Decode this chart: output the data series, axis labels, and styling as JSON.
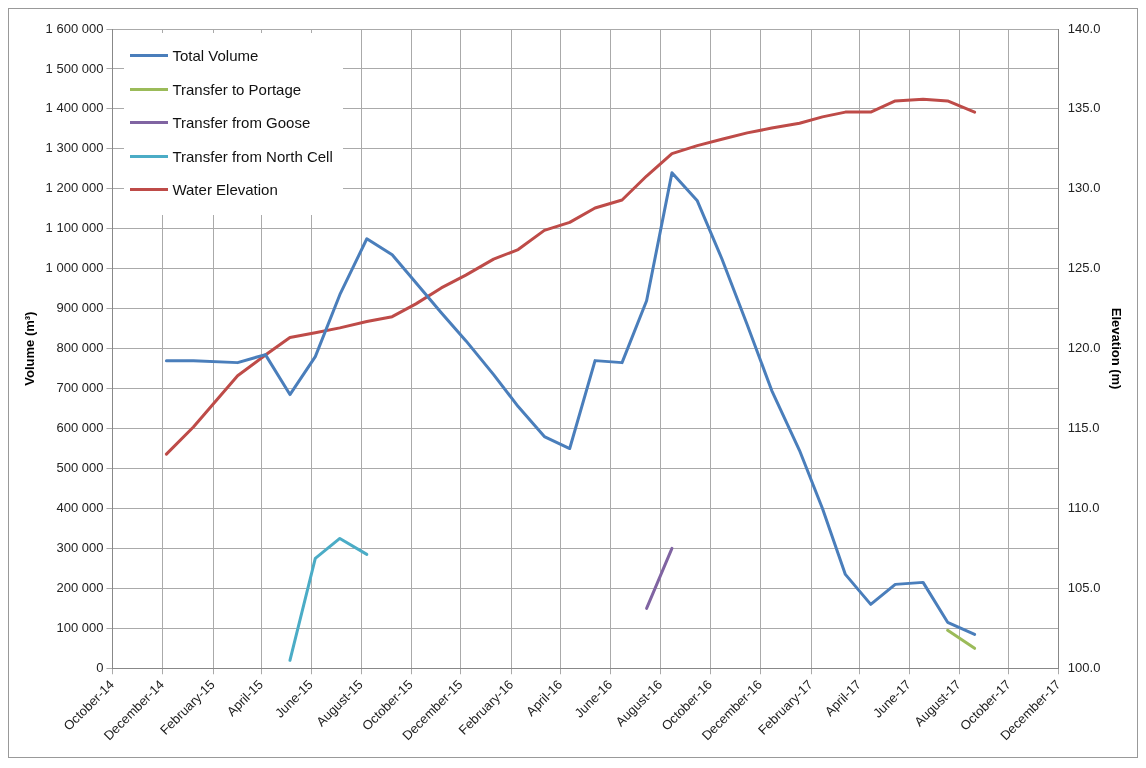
{
  "chart_data": {
    "type": "line",
    "xlabel": null,
    "ylabel": "Volume (m³)",
    "y2label": "Elevation (m)",
    "x": [
      "2014-12-06",
      "2015-01-08",
      "2015-03-03",
      "2015-04-06",
      "2015-05-06",
      "2015-06-06",
      "2015-07-06",
      "2015-08-08",
      "2015-09-08",
      "2015-10-07",
      "2015-11-07",
      "2015-12-07",
      "2016-01-10",
      "2016-02-09",
      "2016-03-12",
      "2016-04-12",
      "2016-05-13",
      "2016-06-15",
      "2016-07-15",
      "2016-08-15",
      "2016-09-15",
      "2016-10-15",
      "2016-11-15",
      "2016-12-15",
      "2017-01-18",
      "2017-02-15",
      "2017-03-15",
      "2017-04-15",
      "2017-05-15",
      "2017-06-18",
      "2017-07-18",
      "2017-08-20"
    ],
    "series": [
      {
        "name": "Total Volume",
        "color": "#4a7ebb",
        "values": [
          770000,
          770000,
          765000,
          785000,
          685000,
          780000,
          935000,
          1075000,
          1035000,
          965000,
          890000,
          820000,
          735000,
          655000,
          580000,
          550000,
          770000,
          765000,
          920000,
          1240000,
          1170000,
          1025000,
          860000,
          695000,
          545000,
          400000,
          235000,
          160000,
          210000,
          215000,
          115000,
          85000
        ]
      },
      {
        "name": "Transfer to Portage",
        "color": "#9bbb59",
        "x": [
          "2017-07-18",
          "2017-08-20"
        ],
        "values": [
          95000,
          50000
        ]
      },
      {
        "name": "Transfer from Goose",
        "color": "#8064a2",
        "x": [
          "2016-07-15",
          "2016-08-15"
        ],
        "values": [
          150000,
          300000
        ]
      },
      {
        "name": "Transfer from North Cell",
        "color": "#4bacc6",
        "x": [
          "2015-05-06",
          "2015-06-06",
          "2015-07-06",
          "2015-08-08"
        ],
        "values": [
          20000,
          275000,
          325000,
          285000
        ]
      },
      {
        "name": "Water Elevation",
        "color": "#be4b48",
        "axis": "y2",
        "values": [
          113.4,
          115.1,
          118.3,
          119.6,
          120.7,
          121.0,
          121.3,
          121.7,
          122.0,
          122.8,
          123.8,
          124.6,
          125.6,
          126.2,
          127.4,
          127.9,
          128.8,
          129.3,
          130.8,
          132.2,
          132.7,
          133.1,
          133.5,
          133.8,
          134.1,
          134.5,
          134.8,
          134.8,
          135.5,
          135.6,
          135.5,
          134.8
        ]
      }
    ],
    "xlim": [
      "2014-10-01",
      "2017-12-01"
    ],
    "xticks": [
      {
        "value": "2014-10-01",
        "label": "October-14"
      },
      {
        "value": "2014-12-01",
        "label": "December-14"
      },
      {
        "value": "2015-02-01",
        "label": "February-15"
      },
      {
        "value": "2015-04-01",
        "label": "April-15"
      },
      {
        "value": "2015-06-01",
        "label": "June-15"
      },
      {
        "value": "2015-08-01",
        "label": "August-15"
      },
      {
        "value": "2015-10-01",
        "label": "October-15"
      },
      {
        "value": "2015-12-01",
        "label": "December-15"
      },
      {
        "value": "2016-02-01",
        "label": "February-16"
      },
      {
        "value": "2016-04-01",
        "label": "April-16"
      },
      {
        "value": "2016-06-01",
        "label": "June-16"
      },
      {
        "value": "2016-08-01",
        "label": "August-16"
      },
      {
        "value": "2016-10-01",
        "label": "October-16"
      },
      {
        "value": "2016-12-01",
        "label": "December-16"
      },
      {
        "value": "2017-02-01",
        "label": "February-17"
      },
      {
        "value": "2017-04-01",
        "label": "April-17"
      },
      {
        "value": "2017-06-01",
        "label": "June-17"
      },
      {
        "value": "2017-08-01",
        "label": "August-17"
      },
      {
        "value": "2017-10-01",
        "label": "October-17"
      },
      {
        "value": "2017-12-01",
        "label": "December-17"
      }
    ],
    "ylim": [
      0,
      1600000
    ],
    "yticks": [
      0,
      {
        "value": 100000,
        "label": "100 000"
      },
      {
        "value": 200000,
        "label": "200 000"
      },
      {
        "value": 300000,
        "label": "300 000"
      },
      {
        "value": 400000,
        "label": "400 000"
      },
      {
        "value": 500000,
        "label": "500 000"
      },
      {
        "value": 600000,
        "label": "600 000"
      },
      {
        "value": 700000,
        "label": "700 000"
      },
      {
        "value": 800000,
        "label": "800 000"
      },
      {
        "value": 900000,
        "label": "900 000"
      },
      {
        "value": 1000000,
        "label": "1 000 000"
      },
      {
        "value": 1100000,
        "label": "1 100 000"
      },
      {
        "value": 1200000,
        "label": "1 200 000"
      },
      {
        "value": 1300000,
        "label": "1 300 000"
      },
      {
        "value": 1400000,
        "label": "1 400 000"
      },
      {
        "value": 1500000,
        "label": "1 500 000"
      },
      {
        "value": 1600000,
        "label": "1 600 000"
      }
    ],
    "y2lim": [
      100,
      140
    ],
    "y2ticks": [
      {
        "value": 100,
        "label": "100.0"
      },
      {
        "value": 105,
        "label": "105.0"
      },
      {
        "value": 110,
        "label": "110.0"
      },
      {
        "value": 115,
        "label": "115.0"
      },
      {
        "value": 120,
        "label": "120.0"
      },
      {
        "value": 125,
        "label": "125.0"
      },
      {
        "value": 130,
        "label": "130.0"
      },
      {
        "value": 135,
        "label": "135.0"
      },
      {
        "value": 140,
        "label": "140.0"
      }
    ],
    "grid": true,
    "legend": "top left",
    "marker": "none",
    "line_style": "solid"
  }
}
